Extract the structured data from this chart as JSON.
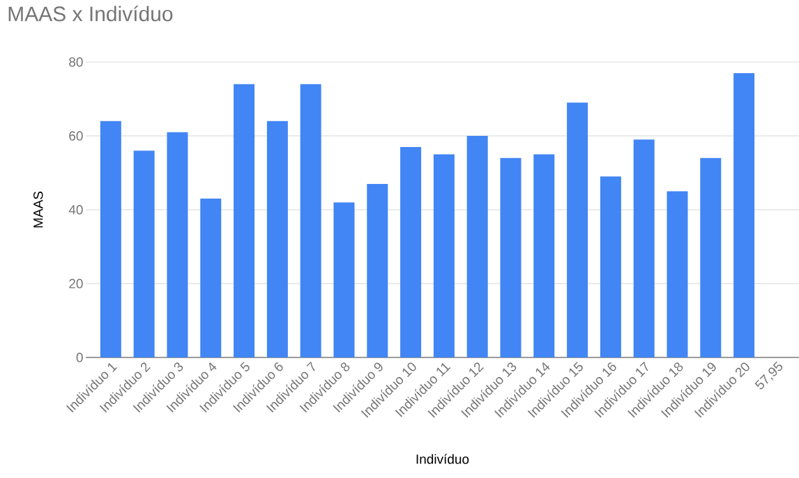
{
  "chart_data": {
    "type": "bar",
    "title": "MAAS x Indivíduo",
    "xlabel": "Indivíduo",
    "ylabel": "MAAS",
    "categories": [
      "Indivíduo 1",
      "Indivíduo 2",
      "Indivíduo 3",
      "Indivíduo 4",
      "Indivíduo 5",
      "Indivíduo 6",
      "Indivíduo 7",
      "Indivíduo 8",
      "Indivíduo 9",
      "Indivíduo 10",
      "Indivíduo 11",
      "Indivíduo 12",
      "Indivíduo 13",
      "Indivíduo 14",
      "Indivíduo 15",
      "Indivíduo 16",
      "Indivíduo 17",
      "Indivíduo 18",
      "Indivíduo 19",
      "Indivíduo 20",
      "57,95"
    ],
    "values": [
      64,
      56,
      61,
      43,
      74,
      64,
      74,
      42,
      47,
      57,
      55,
      60,
      54,
      55,
      69,
      49,
      59,
      45,
      54,
      77,
      null
    ],
    "color": "#4285f4",
    "ylim": [
      0,
      80
    ],
    "yticks": [
      0,
      20,
      40,
      60,
      80
    ],
    "grid": "y"
  }
}
